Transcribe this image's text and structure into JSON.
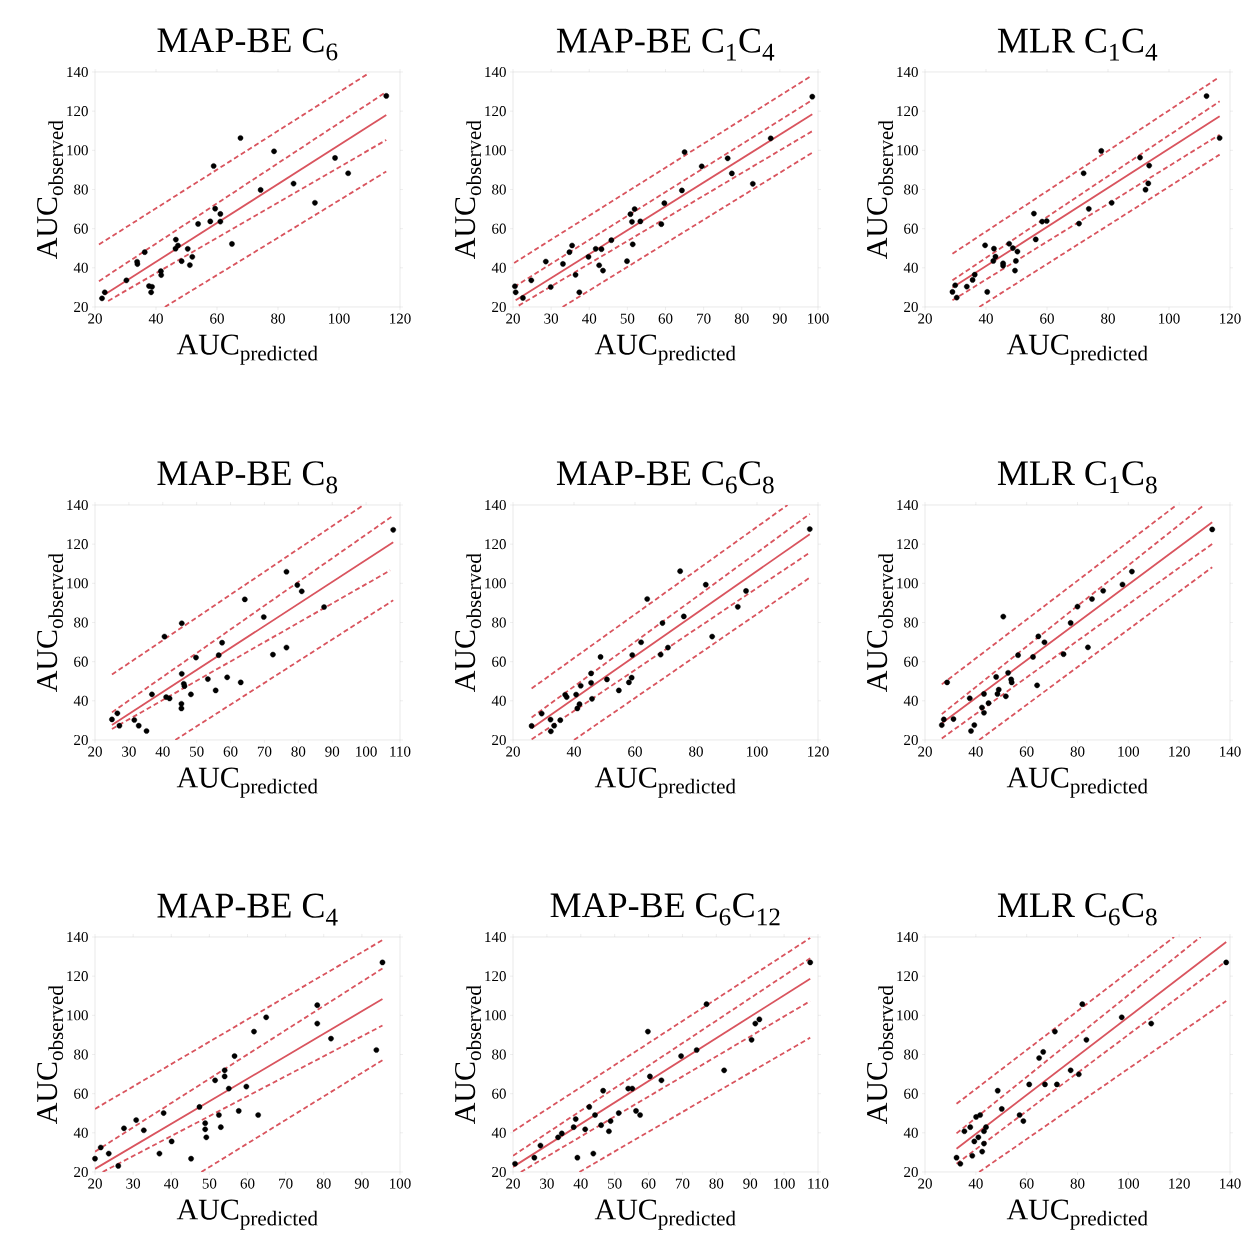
{
  "chart_data": [
    {
      "type": "scatter",
      "title": "MAP-BE C$_{6}$",
      "xlabel": "\\mathrm{AUC}_{\\mathrm{predicted}}",
      "ylabel": "\\mathrm{AUC}_{\\mathrm{observed}}",
      "xlim": [
        20,
        120
      ],
      "ylim": [
        20,
        140
      ],
      "xticks": [
        20,
        40,
        60,
        80,
        100,
        120
      ],
      "yticks": [
        20,
        40,
        60,
        80,
        100,
        120,
        140
      ],
      "series": [
        {
          "color": "#000000",
          "marker": "circle",
          "x": [
            22.3,
            23.2,
            30.3,
            33.8,
            33.9,
            36.3,
            37.7,
            38.7,
            38.4,
            41.6,
            41.7,
            46.5,
            46.4,
            47.2,
            48.4,
            50.4,
            51.1,
            51.9,
            53.8,
            57.8,
            58.9,
            59.4,
            61.1,
            61.1,
            64.9,
            67.7,
            74.3,
            78.7,
            85.1,
            92.1,
            98.7,
            103,
            115.5
          ],
          "values": [
            24.4,
            27.5,
            33.6,
            43.1,
            41.9,
            48,
            30.7,
            30.3,
            27.5,
            38.3,
            36.3,
            54.4,
            49.8,
            51.4,
            43.4,
            49.7,
            41.4,
            45.6,
            62.4,
            63.7,
            92,
            70.2,
            67.5,
            63.6,
            52.2,
            106.3,
            79.8,
            99.5,
            83,
            73.2,
            96.1,
            88.3,
            127.8
          ]
        },
        {
          "type": "line",
          "color": "#d9545e",
          "line_style": "solid",
          "marker": "none",
          "x": [
            23.2,
            115.5
          ],
          "values": [
            26.4,
            118
          ]
        },
        {
          "type": "line",
          "color": "#d9545e",
          "line_style": "dashed",
          "marker": "none",
          "x": [
            21.3,
            109.9
          ],
          "values": [
            51.9,
            139.5
          ]
        },
        {
          "type": "line",
          "color": "#d9545e",
          "line_style": "dashed",
          "marker": "none",
          "x": [
            21.3,
            115.5
          ],
          "values": [
            33.2,
            129.8
          ]
        },
        {
          "type": "line",
          "color": "#d9545e",
          "line_style": "dashed",
          "marker": "none",
          "x": [
            24.3,
            115.5
          ],
          "values": [
            23.1,
            105.3
          ]
        },
        {
          "type": "line",
          "color": "#d9545e",
          "line_style": "dashed",
          "marker": "none",
          "x": [
            42.9,
            115.5
          ],
          "values": [
            20,
            89.2
          ]
        }
      ]
    },
    {
      "type": "scatter",
      "title": "MAP-BE C$_{1}$C$_{4}$",
      "xlabel": "\\mathrm{AUC}_{\\mathrm{predicted}}",
      "ylabel": "\\mathrm{AUC}_{\\mathrm{observed}}",
      "xlim": [
        20,
        100
      ],
      "ylim": [
        20,
        140
      ],
      "xticks": [
        20,
        30,
        40,
        50,
        60,
        70,
        80,
        90,
        100
      ],
      "yticks": [
        20,
        40,
        60,
        80,
        100,
        120,
        140
      ],
      "series": [
        {
          "color": "#000000",
          "marker": "circle",
          "x": [
            20.5,
            20.7,
            22.6,
            24.8,
            28.6,
            29.9,
            33.1,
            34.8,
            35.5,
            36.4,
            37.4,
            39.8,
            41.7,
            42.6,
            43.2,
            43.6,
            45.8,
            49.9,
            50.8,
            51.2,
            51.9,
            51.4,
            53.4,
            58.9,
            59.7,
            64.3,
            65,
            69.5,
            76.3,
            77.4,
            82.9,
            87.6,
            98.5
          ],
          "values": [
            30.6,
            27.5,
            24.6,
            33.6,
            43.2,
            30.2,
            42,
            48,
            51.4,
            36.4,
            27.5,
            45.6,
            49.7,
            41.3,
            49.5,
            38.6,
            54.1,
            43.4,
            67.4,
            63.5,
            70,
            52,
            63.7,
            62.3,
            73,
            79.5,
            99.1,
            91.8,
            95.9,
            88.2,
            82.9,
            106.1,
            127.4
          ]
        },
        {
          "type": "line",
          "color": "#d9545e",
          "line_style": "solid",
          "marker": "none",
          "x": [
            20.7,
            98.5
          ],
          "values": [
            23.4,
            118.4
          ]
        },
        {
          "type": "line",
          "color": "#d9545e",
          "line_style": "dashed",
          "marker": "none",
          "x": [
            20.3,
            97.9
          ],
          "values": [
            42.5,
            137.6
          ]
        },
        {
          "type": "line",
          "color": "#d9545e",
          "line_style": "dashed",
          "marker": "none",
          "x": [
            20.3,
            98.5
          ],
          "values": [
            30.2,
            125.7
          ]
        },
        {
          "type": "line",
          "color": "#d9545e",
          "line_style": "dashed",
          "marker": "none",
          "x": [
            21.5,
            98.5
          ],
          "values": [
            20.7,
            109.8
          ]
        },
        {
          "type": "line",
          "color": "#d9545e",
          "line_style": "dashed",
          "marker": "none",
          "x": [
            33,
            98.5
          ],
          "values": [
            20,
            98.8
          ]
        }
      ]
    },
    {
      "type": "scatter",
      "title": "MLR C$_{1}$C$_{4}$",
      "xlabel": "\\mathrm{AUC}_{\\mathrm{predicted}}",
      "ylabel": "\\mathrm{AUC}_{\\mathrm{observed}}",
      "xlim": [
        20,
        120
      ],
      "ylim": [
        20,
        140
      ],
      "xticks": [
        20,
        40,
        60,
        80,
        100,
        120
      ],
      "yticks": [
        20,
        40,
        60,
        80,
        100,
        120,
        140
      ],
      "series": [
        {
          "color": "#000000",
          "marker": "circle",
          "x": [
            29,
            29.9,
            30.4,
            33.7,
            35.6,
            36.3,
            39.7,
            40.4,
            42.6,
            42.4,
            43.1,
            45.6,
            45.6,
            47.6,
            48.8,
            49.8,
            49.5,
            50.3,
            55.7,
            56.3,
            58.4,
            59.9,
            70.5,
            72,
            73.7,
            77.8,
            81.2,
            90.5,
            92.3,
            93.2,
            93.5,
            112.3,
            116.6
          ],
          "values": [
            27.7,
            31.1,
            24.8,
            30.4,
            33.8,
            36.5,
            51.5,
            27.7,
            49.8,
            43.5,
            45.7,
            42.3,
            41.1,
            52.3,
            50.1,
            43.5,
            38.6,
            48.3,
            67.7,
            54.5,
            63.6,
            63.9,
            62.6,
            88.3,
            70.1,
            99.7,
            73.2,
            96.3,
            79.9,
            83.1,
            92.2,
            127.7,
            106.3
          ]
        },
        {
          "type": "line",
          "color": "#d9545e",
          "line_style": "solid",
          "marker": "none",
          "x": [
            29,
            116.6
          ],
          "values": [
            29.9,
            117.4
          ]
        },
        {
          "type": "line",
          "color": "#d9545e",
          "line_style": "dashed",
          "marker": "none",
          "x": [
            29,
            115.7
          ],
          "values": [
            47.2,
            136.6
          ]
        },
        {
          "type": "line",
          "color": "#d9545e",
          "line_style": "dashed",
          "marker": "none",
          "x": [
            29,
            116.6
          ],
          "values": [
            33.6,
            125
          ]
        },
        {
          "type": "line",
          "color": "#d9545e",
          "line_style": "dashed",
          "marker": "none",
          "x": [
            29,
            116.6
          ],
          "values": [
            23.4,
            108
          ]
        },
        {
          "type": "line",
          "color": "#d9545e",
          "line_style": "dashed",
          "marker": "none",
          "x": [
            37.8,
            116.6
          ],
          "values": [
            20,
            97.8
          ]
        }
      ]
    },
    {
      "type": "scatter",
      "title": "MAP-BE C$_{8}$",
      "xlabel": "\\mathrm{AUC}_{\\mathrm{predicted}}",
      "ylabel": "\\mathrm{AUC}_{\\mathrm{observed}}",
      "xlim": [
        20,
        110
      ],
      "ylim": [
        20,
        140
      ],
      "xticks": [
        20,
        30,
        40,
        50,
        60,
        70,
        80,
        90,
        100,
        110
      ],
      "yticks": [
        20,
        40,
        60,
        80,
        100,
        120,
        140
      ],
      "series": [
        {
          "color": "#000000",
          "marker": "circle",
          "x": [
            25,
            26.6,
            27.2,
            31.6,
            32.9,
            35.2,
            36.8,
            40.5,
            41,
            42,
            45.6,
            45.6,
            45.5,
            45.5,
            46.2,
            46.4,
            48.3,
            49.8,
            53.3,
            55.6,
            56.5,
            57.5,
            59,
            63,
            64.2,
            69.8,
            72.5,
            76.5,
            76.5,
            79.7,
            81,
            87.6,
            108
          ],
          "values": [
            30.5,
            33.6,
            27.3,
            30.2,
            27.3,
            24.6,
            43.3,
            72.8,
            41.9,
            41.2,
            79.6,
            53.8,
            38.5,
            36.1,
            48.7,
            47.5,
            43.3,
            62.1,
            51.1,
            45.3,
            63.3,
            69.7,
            52,
            49.4,
            91.8,
            82.8,
            63.6,
            105.9,
            67.2,
            99.1,
            95.9,
            87.9,
            127.3
          ]
        },
        {
          "type": "line",
          "color": "#d9545e",
          "line_style": "solid",
          "marker": "none",
          "x": [
            25,
            108
          ],
          "values": [
            27.6,
            121
          ]
        },
        {
          "type": "line",
          "color": "#d9545e",
          "line_style": "dashed",
          "marker": "none",
          "x": [
            25,
            99
          ],
          "values": [
            53.4,
            139.7
          ]
        },
        {
          "type": "line",
          "color": "#d9545e",
          "line_style": "dashed",
          "marker": "none",
          "x": [
            25,
            108
          ],
          "values": [
            34.1,
            134.6
          ]
        },
        {
          "type": "line",
          "color": "#d9545e",
          "line_style": "dashed",
          "marker": "none",
          "x": [
            25,
            107.1
          ],
          "values": [
            25.6,
            106.6
          ]
        },
        {
          "type": "line",
          "color": "#d9545e",
          "line_style": "dashed",
          "marker": "none",
          "x": [
            43.7,
            108
          ],
          "values": [
            20,
            91.3
          ]
        }
      ]
    },
    {
      "type": "scatter",
      "title": "MAP-BE C$_{6}$C$_{8}$",
      "xlabel": "\\mathrm{AUC}_{\\mathrm{predicted}}",
      "ylabel": "\\mathrm{AUC}_{\\mathrm{observed}}",
      "xlim": [
        20,
        120
      ],
      "ylim": [
        20,
        140
      ],
      "xticks": [
        20,
        40,
        60,
        80,
        100,
        120
      ],
      "yticks": [
        20,
        40,
        60,
        80,
        100,
        120,
        140
      ],
      "series": [
        {
          "color": "#000000",
          "marker": "circle",
          "x": [
            26.1,
            29.4,
            32.3,
            32.4,
            33.5,
            35.5,
            37.1,
            37.6,
            40.7,
            41.1,
            41.8,
            42.2,
            45.6,
            45.6,
            45.9,
            48.7,
            50.8,
            54.7,
            58,
            58.9,
            59.1,
            62,
            64,
            68.4,
            69,
            70.8,
            74.8,
            76,
            83.2,
            85.3,
            93.7,
            96.4,
            117.3
          ],
          "values": [
            27.2,
            33.5,
            30.4,
            24.4,
            27.3,
            30.1,
            43.1,
            41.9,
            43.2,
            36.1,
            38.3,
            47.7,
            54,
            49.2,
            41,
            62.4,
            50.9,
            45.3,
            49.4,
            51.8,
            63.4,
            69.9,
            92,
            63.6,
            79.7,
            67.2,
            106.2,
            83.1,
            99.3,
            72.8,
            88,
            96.1,
            127.7
          ]
        },
        {
          "type": "line",
          "color": "#d9545e",
          "line_style": "solid",
          "marker": "none",
          "x": [
            26.1,
            117.3
          ],
          "values": [
            26,
            125.1
          ]
        },
        {
          "type": "line",
          "color": "#d9545e",
          "line_style": "dashed",
          "marker": "none",
          "x": [
            26.1,
            110
          ],
          "values": [
            46.3,
            140
          ]
        },
        {
          "type": "line",
          "color": "#d9545e",
          "line_style": "dashed",
          "marker": "none",
          "x": [
            26.1,
            117.3
          ],
          "values": [
            31.5,
            135.4
          ]
        },
        {
          "type": "line",
          "color": "#d9545e",
          "line_style": "dashed",
          "marker": "none",
          "x": [
            26.1,
            117.3
          ],
          "values": [
            20.3,
            115.7
          ]
        },
        {
          "type": "line",
          "color": "#d9545e",
          "line_style": "dashed",
          "marker": "none",
          "x": [
            40,
            117.3
          ],
          "values": [
            20,
            102.9
          ]
        }
      ]
    },
    {
      "type": "scatter",
      "title": "MLR C$_{1}$C$_{8}$",
      "xlabel": "\\mathrm{AUC}_{\\mathrm{predicted}}",
      "ylabel": "\\mathrm{AUC}_{\\mathrm{observed}}",
      "xlim": [
        20,
        140
      ],
      "ylim": [
        20,
        140
      ],
      "xticks": [
        20,
        40,
        60,
        80,
        100,
        120,
        140
      ],
      "yticks": [
        20,
        40,
        60,
        80,
        100,
        120,
        140
      ],
      "series": [
        {
          "color": "#000000",
          "marker": "circle",
          "x": [
            26.6,
            27.4,
            28.7,
            31.2,
            37.6,
            38.1,
            39.4,
            42.4,
            43.2,
            43.2,
            45,
            48,
            48.5,
            49,
            50.8,
            51.8,
            52.7,
            53.9,
            54.1,
            56.6,
            62.5,
            64.1,
            64.6,
            67,
            74.5,
            77.3,
            80,
            84.1,
            85.7,
            90.1,
            97.7,
            101.4,
            133
          ],
          "values": [
            27.6,
            30.5,
            49.4,
            30.7,
            41.3,
            24.6,
            27.6,
            36.6,
            33.9,
            43.5,
            38.8,
            52.2,
            43.5,
            45.7,
            83,
            42.3,
            54.3,
            50.9,
            49.4,
            63.3,
            62.4,
            47.9,
            72.9,
            69.9,
            63.8,
            79.8,
            88.1,
            67.3,
            92,
            96.2,
            99.4,
            106,
            127.5
          ]
        },
        {
          "type": "line",
          "color": "#d9545e",
          "line_style": "solid",
          "marker": "none",
          "x": [
            26.6,
            133
          ],
          "values": [
            28.5,
            131.2
          ]
        },
        {
          "type": "line",
          "color": "#d9545e",
          "line_style": "dashed",
          "marker": "none",
          "x": [
            26.6,
            119
          ],
          "values": [
            48.4,
            140
          ]
        },
        {
          "type": "line",
          "color": "#d9545e",
          "line_style": "dashed",
          "marker": "none",
          "x": [
            26.6,
            129.8
          ],
          "values": [
            33.2,
            140
          ]
        },
        {
          "type": "line",
          "color": "#d9545e",
          "line_style": "dashed",
          "marker": "none",
          "x": [
            26.6,
            133
          ],
          "values": [
            20.8,
            120.1
          ]
        },
        {
          "type": "line",
          "color": "#d9545e",
          "line_style": "dashed",
          "marker": "none",
          "x": [
            41.3,
            133
          ],
          "values": [
            20,
            108.2
          ]
        }
      ]
    },
    {
      "type": "scatter",
      "title": "MAP-BE C$_{4}$",
      "xlabel": "\\mathrm{AUC}_{\\mathrm{predicted}}",
      "ylabel": "\\mathrm{AUC}_{\\mathrm{observed}}",
      "xlim": [
        20,
        100
      ],
      "ylim": [
        20,
        140
      ],
      "xticks": [
        20,
        30,
        40,
        50,
        60,
        70,
        80,
        90,
        100
      ],
      "yticks": [
        20,
        40,
        60,
        80,
        100,
        120,
        140
      ],
      "series": [
        {
          "color": "#000000",
          "marker": "circle",
          "x": [
            20,
            21.5,
            23.6,
            26.1,
            27.6,
            30.8,
            32.8,
            36.9,
            38,
            40.1,
            45.2,
            47.4,
            48.9,
            48.9,
            49.2,
            51.5,
            52.5,
            53,
            54,
            54,
            55.1,
            56.6,
            57.7,
            59.7,
            61.7,
            62.8,
            64.9,
            78.3,
            78.3,
            81.9,
            93.8,
            95.4
          ],
          "values": [
            26.8,
            32.5,
            29.4,
            23.1,
            42.3,
            46.5,
            41.3,
            29.4,
            50.1,
            35.6,
            26.8,
            53.2,
            44.9,
            41.8,
            37.7,
            66.8,
            49.1,
            42.9,
            71.9,
            68.8,
            62.6,
            79.2,
            51.2,
            63.6,
            91.7,
            49.1,
            99,
            105.2,
            95.8,
            88.1,
            82.3,
            127
          ]
        },
        {
          "type": "line",
          "color": "#d9545e",
          "line_style": "solid",
          "marker": "none",
          "x": [
            20,
            95.4
          ],
          "values": [
            21.6,
            108.3
          ]
        },
        {
          "type": "line",
          "color": "#d9545e",
          "line_style": "dashed",
          "marker": "none",
          "x": [
            20,
            95.4
          ],
          "values": [
            52.2,
            138.4
          ]
        },
        {
          "type": "line",
          "color": "#d9545e",
          "line_style": "dashed",
          "marker": "none",
          "x": [
            20,
            95.4
          ],
          "values": [
            30.4,
            123.9
          ]
        },
        {
          "type": "line",
          "color": "#d9545e",
          "line_style": "dashed",
          "marker": "none",
          "x": [
            22,
            95.4
          ],
          "values": [
            20,
            94.8
          ]
        },
        {
          "type": "line",
          "color": "#d9545e",
          "line_style": "dashed",
          "marker": "none",
          "x": [
            47.9,
            95.4
          ],
          "values": [
            20,
            77.1
          ]
        }
      ]
    },
    {
      "type": "scatter",
      "title": "MAP-BE C$_{6}$C$_{12}$",
      "xlabel": "\\mathrm{AUC}_{\\mathrm{predicted}}",
      "ylabel": "\\mathrm{AUC}_{\\mathrm{observed}}",
      "xlim": [
        20,
        110
      ],
      "ylim": [
        20,
        140
      ],
      "xticks": [
        20,
        30,
        40,
        50,
        60,
        70,
        80,
        90,
        100,
        110
      ],
      "yticks": [
        20,
        40,
        60,
        80,
        100,
        120,
        140
      ],
      "series": [
        {
          "color": "#000000",
          "marker": "circle",
          "x": [
            20.6,
            26.3,
            28.1,
            33.3,
            34.4,
            38.5,
            37.9,
            39,
            41.3,
            42.5,
            44.2,
            43.7,
            46.6,
            46,
            48.3,
            48.8,
            51.2,
            54,
            55.2,
            56.3,
            57.5,
            59.8,
            60.4,
            63.8,
            69.6,
            74.2,
            77.1,
            82.3,
            90.4,
            91.5,
            92.7,
            107.7
          ],
          "values": [
            24.2,
            27.3,
            33.5,
            37.7,
            39.7,
            47,
            42.9,
            27.3,
            41.8,
            53.2,
            49.1,
            29.4,
            61.5,
            43.9,
            40.8,
            46,
            50.1,
            62.6,
            62.6,
            51.2,
            49.1,
            91.7,
            68.8,
            66.8,
            79.2,
            82.3,
            105.7,
            71.9,
            87.5,
            95.8,
            97.9,
            127
          ]
        },
        {
          "type": "line",
          "color": "#d9545e",
          "line_style": "solid",
          "marker": "none",
          "x": [
            20,
            107.7
          ],
          "values": [
            22.6,
            118.7
          ]
        },
        {
          "type": "line",
          "color": "#d9545e",
          "line_style": "dashed",
          "marker": "none",
          "x": [
            20,
            107.7
          ],
          "values": [
            40.8,
            139.5
          ]
        },
        {
          "type": "line",
          "color": "#d9545e",
          "line_style": "dashed",
          "marker": "none",
          "x": [
            20,
            107.7
          ],
          "values": [
            28.3,
            129.1
          ]
        },
        {
          "type": "line",
          "color": "#d9545e",
          "line_style": "dashed",
          "marker": "none",
          "x": [
            22.3,
            107.7
          ],
          "values": [
            20,
            107.3
          ]
        },
        {
          "type": "line",
          "color": "#d9545e",
          "line_style": "dashed",
          "marker": "none",
          "x": [
            39.6,
            107.7
          ],
          "values": [
            20,
            88.6
          ]
        }
      ]
    },
    {
      "type": "scatter",
      "title": "MLR C$_{6}$C$_{8}$",
      "xlabel": "\\mathrm{AUC}_{\\mathrm{predicted}}",
      "ylabel": "\\mathrm{AUC}_{\\mathrm{observed}}",
      "xlim": [
        20,
        140
      ],
      "ylim": [
        20,
        140
      ],
      "xticks": [
        20,
        40,
        60,
        80,
        100,
        120,
        140
      ],
      "yticks": [
        20,
        40,
        60,
        80,
        100,
        120,
        140
      ],
      "series": [
        {
          "color": "#000000",
          "marker": "circle",
          "x": [
            32.4,
            33.9,
            35.5,
            37.8,
            38.6,
            39.4,
            40.1,
            41,
            41.7,
            42.5,
            43.2,
            43.2,
            44,
            48.6,
            50.2,
            57.2,
            58.7,
            61,
            64.9,
            66.5,
            67.2,
            71.1,
            71.9,
            77.3,
            80.5,
            81.9,
            83.5,
            97.4,
            109,
            138.5
          ],
          "values": [
            27.3,
            24.2,
            40.8,
            42.9,
            28.3,
            35.6,
            48.1,
            37.7,
            49.1,
            30.4,
            40.8,
            34.5,
            42.9,
            61.5,
            52.2,
            49.1,
            46,
            64.7,
            78.2,
            81.3,
            64.7,
            91.7,
            64.7,
            71.9,
            69.9,
            105.7,
            87.5,
            99,
            95.8,
            127
          ]
        },
        {
          "type": "line",
          "color": "#d9545e",
          "line_style": "solid",
          "marker": "none",
          "x": [
            32.4,
            138.5
          ],
          "values": [
            31.9,
            137.4
          ]
        },
        {
          "type": "line",
          "color": "#d9545e",
          "line_style": "dashed",
          "marker": "none",
          "x": [
            32.4,
            118
          ],
          "values": [
            54.8,
            140
          ]
        },
        {
          "type": "line",
          "color": "#d9545e",
          "line_style": "dashed",
          "marker": "none",
          "x": [
            32.4,
            128.4
          ],
          "values": [
            39.7,
            140
          ]
        },
        {
          "type": "line",
          "color": "#d9545e",
          "line_style": "dashed",
          "marker": "none",
          "x": [
            32.4,
            138.5
          ],
          "values": [
            24.2,
            127.6
          ]
        },
        {
          "type": "line",
          "color": "#d9545e",
          "line_style": "dashed",
          "marker": "none",
          "x": [
            41.3,
            138.5
          ],
          "values": [
            20,
            107.3
          ]
        }
      ]
    }
  ]
}
